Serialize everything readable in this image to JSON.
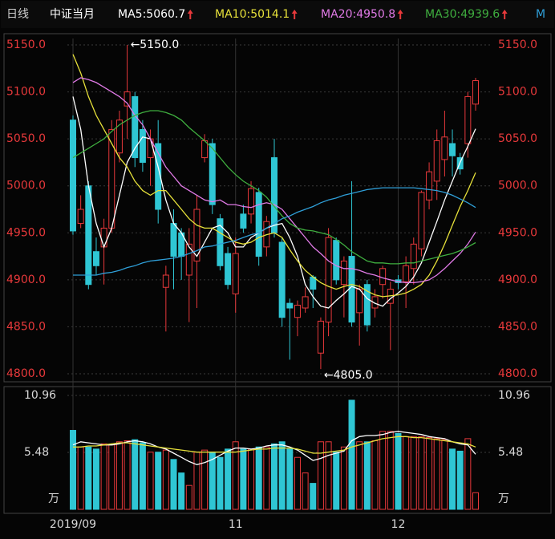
{
  "chart_data": {
    "type": "candlestick",
    "header": {
      "period": "日线",
      "instrument": "中证当月",
      "more": "M"
    },
    "categories": [
      "2019/09",
      null,
      null,
      null,
      null,
      null,
      null,
      null,
      null,
      null,
      null,
      null,
      null,
      null,
      null,
      null,
      null,
      null,
      null,
      null,
      null,
      "11",
      null,
      null,
      null,
      null,
      null,
      null,
      null,
      null,
      null,
      null,
      null,
      null,
      null,
      null,
      null,
      null,
      null,
      null,
      null,
      null,
      "12",
      null,
      null,
      null,
      null,
      null,
      null,
      null,
      null,
      null,
      null
    ],
    "open": [
      5070,
      4960,
      5000,
      4930,
      4935,
      4955,
      5035,
      5085,
      5095,
      5060,
      5030,
      5045,
      4892,
      4960,
      4950,
      4905,
      4920,
      5030,
      5045,
      4965,
      4928,
      4885,
      4970,
      4970,
      4993,
      4935,
      5030,
      4940,
      4875,
      4860,
      4870,
      4903,
      4822,
      4855,
      4942,
      4895,
      4925,
      4865,
      4895,
      4870,
      4895,
      4875,
      4900,
      4898,
      4912,
      4933,
      4985,
      5005,
      5028,
      5045,
      5030,
      5045,
      5087
    ],
    "high": [
      5075,
      4990,
      5005,
      4945,
      4965,
      5070,
      5080,
      5150,
      5100,
      5070,
      5060,
      5070,
      4915,
      4975,
      4955,
      4955,
      4990,
      5055,
      5050,
      4970,
      4935,
      4945,
      4980,
      5005,
      4998,
      4968,
      5050,
      4945,
      4880,
      4878,
      4892,
      4905,
      4860,
      4955,
      4945,
      4925,
      5005,
      4895,
      4900,
      4890,
      4915,
      4898,
      4905,
      4925,
      4945,
      4995,
      5025,
      5060,
      5080,
      5060,
      5035,
      5100,
      5115
    ],
    "low": [
      4948,
      4955,
      4890,
      4905,
      4895,
      4950,
      5025,
      5050,
      5020,
      5015,
      5000,
      4960,
      4845,
      4890,
      4900,
      4855,
      4870,
      5025,
      4970,
      4910,
      4890,
      4865,
      4950,
      4960,
      4915,
      4925,
      4945,
      4850,
      4815,
      4840,
      4865,
      4870,
      4805,
      4840,
      4895,
      4860,
      4850,
      4830,
      4845,
      4860,
      4880,
      4825,
      4890,
      4870,
      4895,
      4925,
      4975,
      4985,
      5010,
      5010,
      5012,
      5030,
      5080
    ],
    "close": [
      4952,
      4975,
      4895,
      4915,
      4955,
      5060,
      5070,
      5100,
      5030,
      5025,
      5050,
      4975,
      4905,
      4925,
      4925,
      4938,
      4975,
      5048,
      4980,
      4915,
      4895,
      4928,
      4955,
      4997,
      4925,
      4962,
      4950,
      4860,
      4870,
      4873,
      4882,
      4890,
      4856,
      4945,
      4900,
      4920,
      4855,
      4890,
      4852,
      4882,
      4912,
      4890,
      4897,
      4915,
      4938,
      4993,
      5015,
      5048,
      5052,
      5032,
      5018,
      5095,
      5112
    ],
    "up_color": "#e8393b",
    "down_color": "#2fc6d4",
    "series": [
      {
        "name": "MA5:5060.7",
        "color": "#ffffff",
        "values": [
          5095,
          5060,
          5000,
          4960,
          4935,
          4955,
          4990,
          5025,
          5040,
          5052,
          5050,
          5020,
          4985,
          4960,
          4950,
          4935,
          4925,
          4940,
          4955,
          4958,
          4950,
          4935,
          4935,
          4945,
          4950,
          4955,
          4958,
          4960,
          4945,
          4925,
          4895,
          4882,
          4872,
          4870,
          4878,
          4885,
          4893,
          4890,
          4880,
          4875,
          4872,
          4880,
          4886,
          4893,
          4903,
          4918,
          4940,
          4962,
          4985,
          5005,
          5025,
          5042,
          5060.7
        ]
      },
      {
        "name": "MA10:5014.1",
        "color": "#e6e03a",
        "values": [
          5140,
          5120,
          5095,
          5075,
          5060,
          5045,
          5030,
          5020,
          5005,
          4995,
          4990,
          4995,
          4995,
          4985,
          4975,
          4965,
          4958,
          4955,
          4955,
          4950,
          4945,
          4940,
          4938,
          4940,
          4945,
          4948,
          4950,
          4945,
          4932,
          4920,
          4910,
          4903,
          4897,
          4893,
          4890,
          4893,
          4895,
          4893,
          4888,
          4884,
          4882,
          4883,
          4884,
          4886,
          4890,
          4895,
          4905,
          4920,
          4938,
          4958,
          4978,
          4995,
          5014.1
        ]
      },
      {
        "name": "MA20:4950.8",
        "color": "#e07ae6",
        "values": [
          5110,
          5115,
          5113,
          5110,
          5105,
          5100,
          5095,
          5088,
          5075,
          5065,
          5050,
          5035,
          5020,
          5010,
          5000,
          4995,
          4990,
          4985,
          4983,
          4985,
          4980,
          4980,
          4978,
          4977,
          4980,
          4982,
          4980,
          4975,
          4965,
          4955,
          4945,
          4935,
          4928,
          4920,
          4915,
          4912,
          4912,
          4910,
          4907,
          4905,
          4902,
          4900,
          4898,
          4897,
          4897,
          4898,
          4900,
          4905,
          4912,
          4920,
          4928,
          4938,
          4950.8
        ]
      },
      {
        "name": "MA30:4939.6",
        "color": "#3fae3f",
        "values": [
          5030,
          5035,
          5040,
          5045,
          5050,
          5058,
          5065,
          5070,
          5075,
          5078,
          5080,
          5080,
          5078,
          5075,
          5070,
          5062,
          5055,
          5048,
          5040,
          5030,
          5020,
          5012,
          5005,
          5000,
          4995,
          4988,
          4978,
          4968,
          4960,
          4955,
          4953,
          4952,
          4950,
          4948,
          4943,
          4937,
          4930,
          4925,
          4920,
          4918,
          4918,
          4917,
          4917,
          4918,
          4918,
          4920,
          4922,
          4924,
          4926,
          4928,
          4931,
          4935,
          4939.6
        ]
      },
      {
        "color": "#2f9fd8",
        "values": [
          4905,
          4905,
          4905,
          4905,
          4907,
          4908,
          4910,
          4913,
          4915,
          4918,
          4920,
          4921,
          4922,
          4923,
          4925,
          4928,
          4931,
          4935,
          4936,
          4938,
          4940,
          4942,
          4945,
          4948,
          4950,
          4955,
          4960,
          4965,
          4968,
          4972,
          4975,
          4978,
          4982,
          4985,
          4987,
          4990,
          4992,
          4994,
          4996,
          4997,
          4998,
          4998,
          4998,
          4998,
          4998,
          4997,
          4996,
          4995,
          4993,
          4990,
          4986,
          4982,
          4977
        ]
      }
    ],
    "annotations": [
      {
        "label": "←5150.0",
        "value": 5150
      },
      {
        "label": "←4805.0",
        "value": 4805
      }
    ],
    "ylim": [
      4800,
      5150
    ],
    "yticks": [
      {
        "value": 4800,
        "label": "4800.0"
      },
      {
        "value": 4850,
        "label": "4850.0"
      },
      {
        "value": 4900,
        "label": "4900.0"
      },
      {
        "value": 4950,
        "label": "4950.0"
      },
      {
        "value": 5000,
        "label": "5000.0"
      },
      {
        "value": 5050,
        "label": "5050.0"
      },
      {
        "value": 5100,
        "label": "5100.0"
      },
      {
        "value": 5150,
        "label": "5150.0"
      }
    ],
    "grid": true,
    "volume": {
      "values": [
        7.6,
        6.0,
        6.0,
        5.8,
        6.3,
        6.2,
        6.5,
        6.6,
        6.7,
        6.4,
        5.5,
        5.5,
        5.7,
        4.8,
        3.5,
        2.3,
        5.5,
        5.7,
        5.5,
        5.0,
        5.8,
        6.5,
        5.8,
        5.8,
        6.0,
        6.0,
        6.3,
        6.5,
        5.8,
        5.0,
        3.5,
        2.5,
        6.5,
        6.5,
        5.5,
        6.0,
        10.5,
        6.5,
        6.5,
        6.6,
        7.5,
        7.5,
        7.3,
        7.0,
        7.0,
        7.0,
        6.9,
        6.8,
        6.7,
        5.8,
        5.6,
        6.8,
        1.6
      ],
      "series": [
        {
          "color": "#ffffff",
          "values": [
            6.2,
            6.5,
            6.4,
            6.3,
            6.2,
            6.2,
            6.3,
            6.5,
            6.6,
            6.5,
            6.3,
            6.0,
            5.8,
            5.4,
            5.0,
            4.6,
            4.3,
            4.5,
            4.8,
            5.2,
            5.6,
            5.9,
            5.9,
            5.8,
            5.9,
            6.1,
            6.2,
            6.2,
            6.0,
            5.7,
            5.2,
            4.7,
            4.9,
            5.2,
            5.4,
            5.6,
            6.6,
            7.0,
            7.1,
            7.1,
            7.2,
            7.4,
            7.5,
            7.4,
            7.3,
            7.2,
            7.0,
            6.9,
            6.8,
            6.5,
            6.3,
            6.2,
            5.3
          ]
        },
        {
          "color": "#e6e03a",
          "values": [
            6.0,
            6.0,
            6.1,
            6.1,
            6.2,
            6.3,
            6.4,
            6.4,
            6.3,
            6.2,
            6.1,
            6.0,
            5.9,
            5.8,
            5.7,
            5.6,
            5.5,
            5.5,
            5.5,
            5.5,
            5.5,
            5.5,
            5.6,
            5.7,
            5.8,
            5.8,
            5.9,
            5.9,
            5.9,
            5.8,
            5.6,
            5.4,
            5.4,
            5.5,
            5.6,
            5.7,
            6.0,
            6.2,
            6.4,
            6.6,
            6.8,
            6.9,
            7.0,
            7.0,
            6.9,
            6.9,
            6.8,
            6.7,
            6.6,
            6.5,
            6.4,
            6.3,
            6.0
          ]
        }
      ],
      "ylim": [
        0,
        10.96
      ],
      "yticks": [
        5.48,
        10.96
      ],
      "unit": "万"
    }
  }
}
